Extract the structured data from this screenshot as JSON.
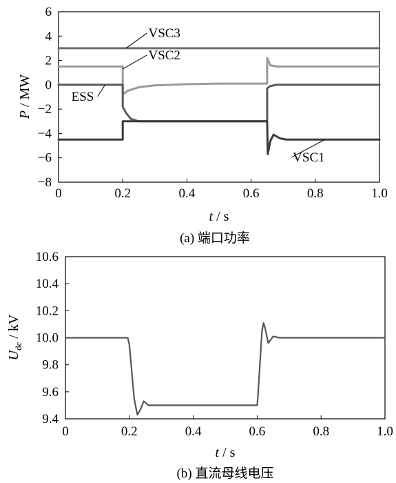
{
  "chart_data": [
    {
      "type": "line",
      "caption": "(a)  端口功率",
      "ylabel_main": "P",
      "ylabel_unit": " / MW",
      "xlabel_main": "t",
      "xlabel_unit": " / s",
      "xlim": [
        0,
        1.0
      ],
      "ylim": [
        -8,
        6
      ],
      "xticks": [
        "0",
        "0.2",
        "0.4",
        "0.6",
        "0.8",
        "1.0"
      ],
      "xtick_values": [
        0,
        0.2,
        0.4,
        0.6,
        0.8,
        1.0
      ],
      "yticks": [
        "−8",
        "−6",
        "−4",
        "−2",
        "0",
        "2",
        "4",
        "6"
      ],
      "ytick_values": [
        -8,
        -6,
        -4,
        -2,
        0,
        2,
        4,
        6
      ],
      "grid": false,
      "series": [
        {
          "name": "VSC3",
          "color": "#6e6e6e",
          "points": [
            [
              0,
              3.0
            ],
            [
              1.0,
              3.0
            ]
          ]
        },
        {
          "name": "VSC2",
          "color": "#9a9a9a",
          "points": [
            [
              0,
              1.5
            ],
            [
              0.2,
              1.5
            ],
            [
              0.2,
              -0.8
            ],
            [
              0.215,
              -0.5
            ],
            [
              0.25,
              -0.2
            ],
            [
              0.3,
              -0.05
            ],
            [
              0.4,
              0.05
            ],
            [
              0.5,
              0.1
            ],
            [
              0.65,
              0.1
            ],
            [
              0.65,
              2.2
            ],
            [
              0.66,
              1.6
            ],
            [
              0.68,
              1.5
            ],
            [
              1.0,
              1.5
            ]
          ]
        },
        {
          "name": "ESS",
          "color": "#5a5a5a",
          "points": [
            [
              0,
              0.0
            ],
            [
              0.2,
              0.0
            ],
            [
              0.2,
              -1.8
            ],
            [
              0.21,
              -2.3
            ],
            [
              0.225,
              -2.8
            ],
            [
              0.25,
              -3.0
            ],
            [
              0.65,
              -3.0
            ],
            [
              0.65,
              -0.3
            ],
            [
              0.66,
              -0.1
            ],
            [
              0.68,
              0.0
            ],
            [
              1.0,
              0.0
            ]
          ]
        },
        {
          "name": "VSC1",
          "color": "#3a3a3a",
          "points": [
            [
              0,
              -4.5
            ],
            [
              0.2,
              -4.5
            ],
            [
              0.2,
              -3.0
            ],
            [
              0.65,
              -3.0
            ],
            [
              0.652,
              -5.7
            ],
            [
              0.66,
              -4.6
            ],
            [
              0.67,
              -4.1
            ],
            [
              0.69,
              -4.4
            ],
            [
              0.71,
              -4.5
            ],
            [
              1.0,
              -4.5
            ]
          ]
        }
      ],
      "annotations": [
        {
          "text": "VSC3",
          "x": 0.28,
          "y": 3.9,
          "target": [
            0.21,
            3.0
          ]
        },
        {
          "text": "VSC2",
          "x": 0.28,
          "y": 2.1,
          "target": [
            0.2,
            1.3
          ]
        },
        {
          "text": "ESS",
          "x": 0.04,
          "y": -1.3,
          "target": [
            0.145,
            0.0
          ]
        },
        {
          "text": "VSC1",
          "x": 0.73,
          "y": -6.3,
          "target": [
            0.83,
            -4.5
          ]
        }
      ]
    },
    {
      "type": "line",
      "caption": "(b)  直流母线电压",
      "ylabel_main": "U",
      "ylabel_sub": "dc",
      "ylabel_unit": " / kV",
      "xlabel_main": "t",
      "xlabel_unit": " / s",
      "xlim": [
        0,
        1.0
      ],
      "ylim": [
        9.4,
        10.6
      ],
      "xticks": [
        "0",
        "0.2",
        "0.4",
        "0.6",
        "0.8",
        "1.0"
      ],
      "xtick_values": [
        0,
        0.2,
        0.4,
        0.6,
        0.8,
        1.0
      ],
      "yticks": [
        "9.4",
        "9.6",
        "9.8",
        "10.0",
        "10.2",
        "10.4",
        "10.6"
      ],
      "ytick_values": [
        9.4,
        9.6,
        9.8,
        10.0,
        10.2,
        10.4,
        10.6
      ],
      "grid": false,
      "series": [
        {
          "name": "",
          "color": "#555555",
          "points": [
            [
              0,
              10.0
            ],
            [
              0.195,
              10.0
            ],
            [
              0.2,
              9.95
            ],
            [
              0.215,
              9.55
            ],
            [
              0.225,
              9.43
            ],
            [
              0.235,
              9.47
            ],
            [
              0.245,
              9.53
            ],
            [
              0.26,
              9.5
            ],
            [
              0.6,
              9.5
            ],
            [
              0.602,
              9.55
            ],
            [
              0.615,
              10.05
            ],
            [
              0.62,
              10.11
            ],
            [
              0.625,
              10.07
            ],
            [
              0.635,
              9.96
            ],
            [
              0.65,
              10.01
            ],
            [
              0.67,
              10.0
            ],
            [
              1.0,
              10.0
            ]
          ]
        }
      ]
    }
  ]
}
